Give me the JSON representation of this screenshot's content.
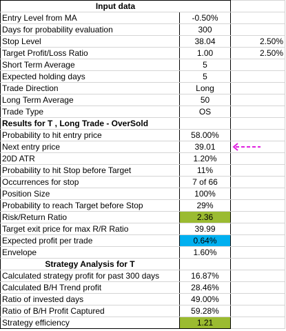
{
  "colors": {
    "green": "#9bbb31",
    "cyan": "#00b0f0",
    "arrow": "#e020e0"
  },
  "sections": {
    "input_header": "Input data",
    "results_header": "Results for T , Long Trade - OverSold",
    "strategy_header": "Strategy Analysis for T"
  },
  "rows": {
    "entry_level": {
      "label": "Entry Level from MA",
      "value": "-0.50%"
    },
    "days_prob": {
      "label": "Days for probability evaluation",
      "value": "300"
    },
    "stop_level": {
      "label": "Stop Level",
      "value": "38.04",
      "extra": "2.50%"
    },
    "target_ratio": {
      "label": "Target Profit/Loss Ratio",
      "value": "1.00",
      "extra": "2.50%"
    },
    "short_avg": {
      "label": "Short Term Average",
      "value": "5"
    },
    "holding_days": {
      "label": "Expected holding days",
      "value": "5"
    },
    "trade_direction": {
      "label": "Trade Direction",
      "value": "Long"
    },
    "long_avg": {
      "label": "Long Term Average",
      "value": "50"
    },
    "trade_type": {
      "label": "Trade Type",
      "value": "OS"
    },
    "prob_entry": {
      "label": "Probability to hit entry price",
      "value": "58.00%"
    },
    "next_entry": {
      "label": "Next entry price",
      "value": "39.01"
    },
    "atr": {
      "label": "20D ATR",
      "value": "1.20%"
    },
    "prob_stop": {
      "label": "Probability to hit Stop before Target",
      "value": "11%"
    },
    "occ_stop": {
      "label": "Occurrences for stop",
      "value": "7 of 66"
    },
    "position_size": {
      "label": "Position Size",
      "value": "100%"
    },
    "prob_target": {
      "label": "Probability to reach Target before Stop",
      "value": "29%"
    },
    "risk_return": {
      "label": "Risk/Return Ratio",
      "value": "2.36"
    },
    "target_exit": {
      "label": "Target exit price for max R/R Ratio",
      "value": "39.99"
    },
    "exp_profit": {
      "label": "Expected profit per trade",
      "value": "0.64%"
    },
    "envelope": {
      "label": "Envelope",
      "value": "1.60%"
    },
    "calc_strategy": {
      "label": "Calculated strategy profit for past 300 days",
      "value": "16.87%"
    },
    "calc_bh": {
      "label": "Calculated B/H Trend profit",
      "value": "28.46%"
    },
    "ratio_invested": {
      "label": "Ratio of invested days",
      "value": "49.00%"
    },
    "ratio_bh": {
      "label": "Ratio of B/H Profit Captured",
      "value": "59.28%"
    },
    "efficiency": {
      "label": "Strategy efficiency",
      "value": "1.21"
    }
  }
}
